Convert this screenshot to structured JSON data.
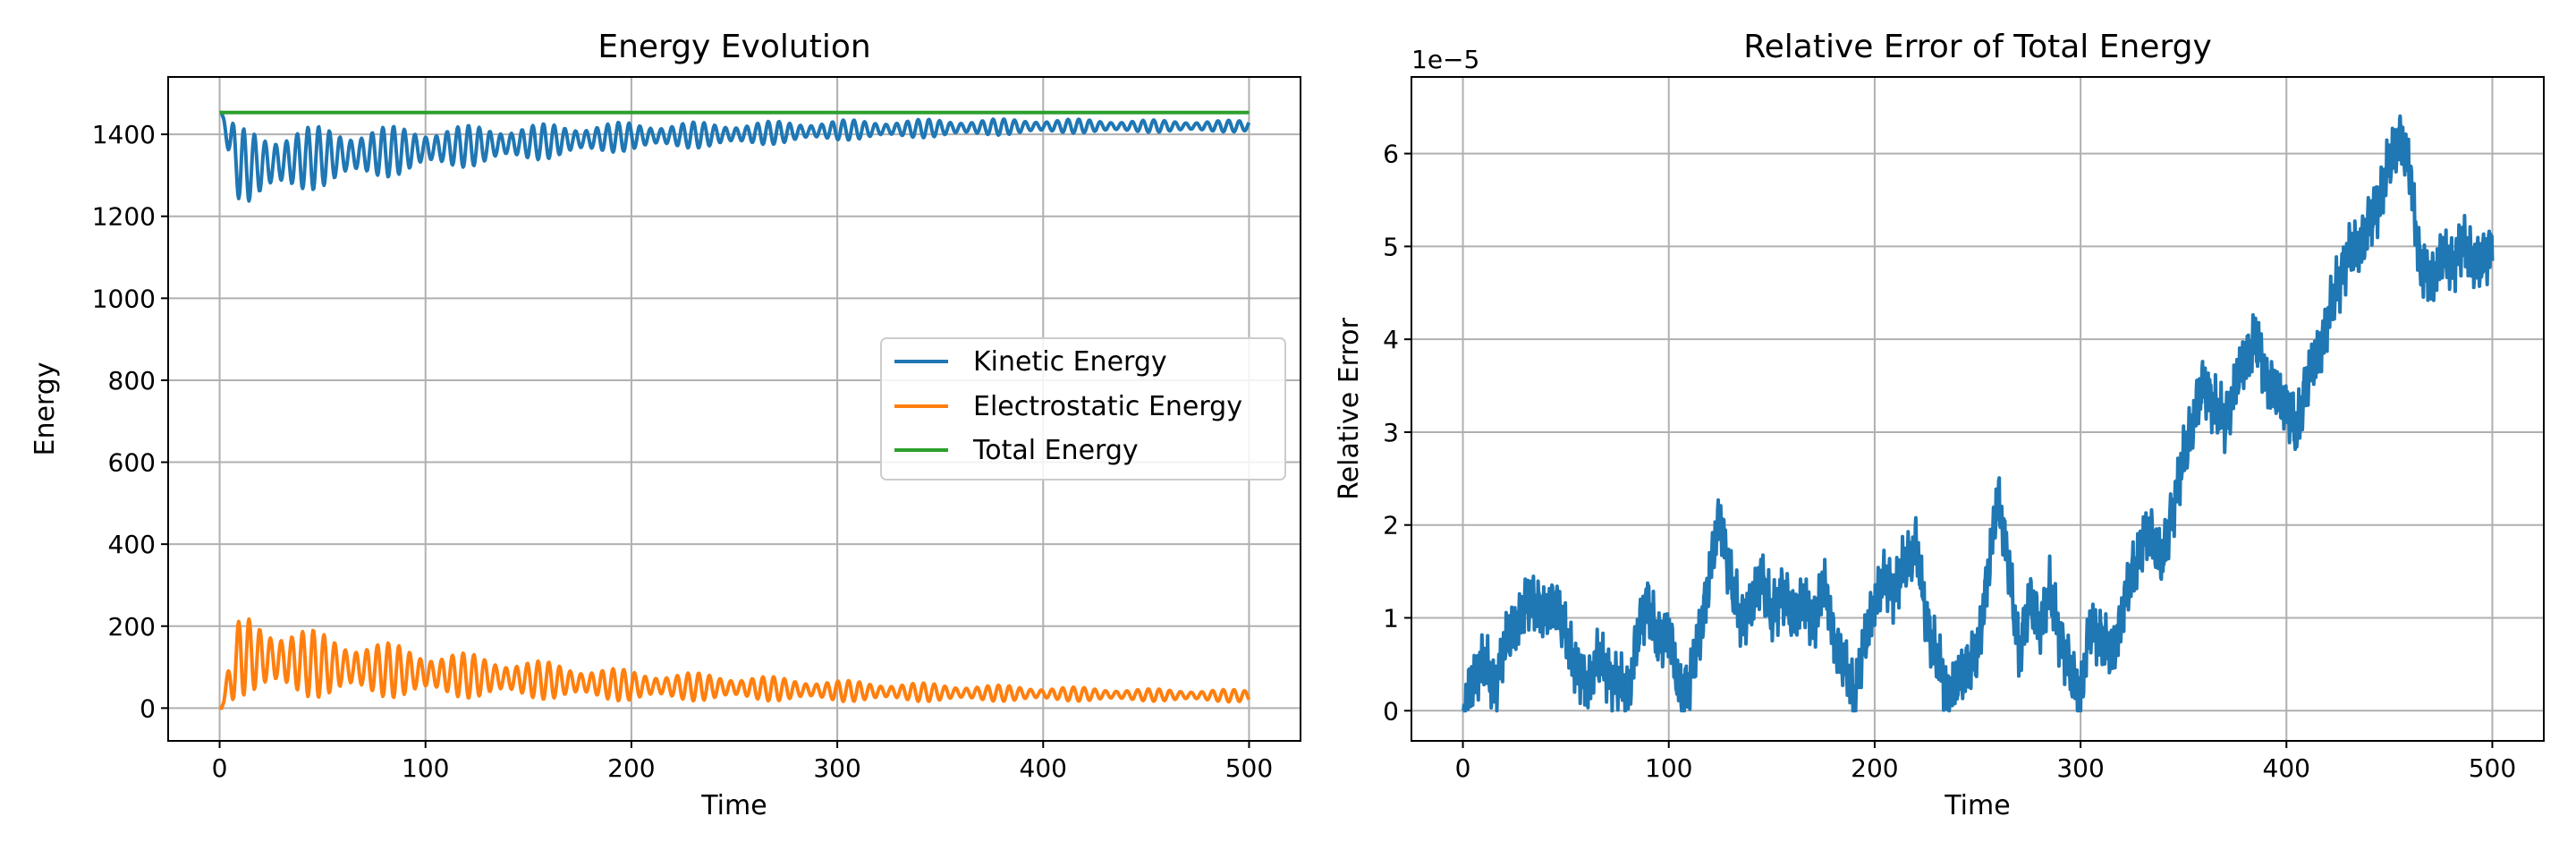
{
  "chart_data": [
    {
      "type": "line",
      "title": "Energy Evolution",
      "xlabel": "Time",
      "ylabel": "Energy",
      "xlim": [
        -25,
        525
      ],
      "ylim": [
        -80,
        1540
      ],
      "xticks": [
        0,
        100,
        200,
        300,
        400,
        500
      ],
      "yticks": [
        0,
        200,
        400,
        600,
        800,
        1000,
        1200,
        1400
      ],
      "grid": true,
      "legend_position": "center-right",
      "series": [
        {
          "name": "Kinetic Energy",
          "color": "#1f77b4",
          "x": [
            0,
            10,
            25,
            50,
            75,
            100,
            150,
            200,
            250,
            300,
            350,
            400,
            450,
            500
          ],
          "y_mean": [
            1453,
            1320,
            1330,
            1345,
            1355,
            1365,
            1380,
            1395,
            1400,
            1410,
            1415,
            1420,
            1420,
            1420
          ],
          "y_amplitude": [
            0,
            95,
            90,
            75,
            65,
            55,
            45,
            35,
            30,
            25,
            22,
            18,
            15,
            14
          ],
          "y_values": [
            1453,
            1250,
            1220,
            1410,
            1300,
            1420,
            1330,
            1430,
            1360,
            1435,
            1395,
            1440,
            1405,
            1410
          ]
        },
        {
          "name": "Electrostatic Energy",
          "color": "#ff7f0e",
          "x": [
            0,
            10,
            25,
            50,
            75,
            100,
            150,
            200,
            250,
            300,
            350,
            400,
            450,
            500
          ],
          "y_mean": [
            0,
            130,
            120,
            105,
            95,
            85,
            70,
            55,
            50,
            42,
            38,
            35,
            32,
            30
          ],
          "y_amplitude": [
            0,
            100,
            95,
            80,
            70,
            60,
            48,
            38,
            32,
            26,
            22,
            18,
            15,
            15
          ],
          "y_values": [
            0,
            205,
            235,
            180,
            170,
            140,
            140,
            100,
            80,
            70,
            55,
            50,
            50,
            45
          ]
        },
        {
          "name": "Total Energy",
          "color": "#2ca02c",
          "x": [
            0,
            500
          ],
          "y_values": [
            1453,
            1453
          ]
        }
      ]
    },
    {
      "type": "line",
      "title": "Relative Error of Total Energy",
      "xlabel": "Time",
      "ylabel": "Relative Error",
      "offset_label": "1e−5",
      "xlim": [
        -25,
        525
      ],
      "ylim": [
        -0.325,
        6.825
      ],
      "xticks": [
        0,
        100,
        200,
        300,
        400,
        500
      ],
      "yticks": [
        0,
        1,
        2,
        3,
        4,
        5,
        6
      ],
      "grid": true,
      "series": [
        {
          "name": "Relative Error",
          "color": "#1f77b4",
          "x": [
            0,
            5,
            10,
            15,
            20,
            25,
            30,
            35,
            40,
            45,
            50,
            55,
            60,
            65,
            70,
            75,
            80,
            85,
            90,
            95,
            100,
            105,
            110,
            115,
            120,
            125,
            130,
            135,
            140,
            145,
            150,
            155,
            160,
            165,
            170,
            175,
            180,
            185,
            190,
            195,
            200,
            205,
            210,
            215,
            220,
            225,
            230,
            235,
            240,
            245,
            250,
            255,
            260,
            265,
            270,
            275,
            280,
            285,
            290,
            295,
            300,
            305,
            310,
            315,
            320,
            325,
            330,
            335,
            340,
            345,
            350,
            355,
            360,
            365,
            370,
            375,
            380,
            385,
            390,
            395,
            400,
            405,
            410,
            415,
            420,
            425,
            430,
            435,
            440,
            445,
            450,
            455,
            460,
            465,
            470,
            475,
            480,
            485,
            490,
            495,
            500
          ],
          "y": [
            0.0,
            0.3,
            0.6,
            0.2,
            0.7,
            0.9,
            1.1,
            1.2,
            1.0,
            1.2,
            0.8,
            0.5,
            0.2,
            0.6,
            0.4,
            0.3,
            0.2,
            0.8,
            1.2,
            0.7,
            0.9,
            0.2,
            0.3,
            0.8,
            1.5,
            2.1,
            1.4,
            1.0,
            1.1,
            1.5,
            1.0,
            1.3,
            1.0,
            1.2,
            0.9,
            1.4,
            0.8,
            0.5,
            0.2,
            0.7,
            1.2,
            1.4,
            1.3,
            1.6,
            1.8,
            1.0,
            0.6,
            0.2,
            0.3,
            0.5,
            0.6,
            1.5,
            2.3,
            1.6,
            0.6,
            1.2,
            0.9,
            1.3,
            0.8,
            0.4,
            0.2,
            0.9,
            0.8,
            0.6,
            1.0,
            1.5,
            1.8,
            1.9,
            1.6,
            2.2,
            2.7,
            3.2,
            3.5,
            3.3,
            3.1,
            3.5,
            3.8,
            4.0,
            3.6,
            3.4,
            3.3,
            3.0,
            3.6,
            3.8,
            4.2,
            4.6,
            4.9,
            5.0,
            5.2,
            5.5,
            5.9,
            6.2,
            5.8,
            4.8,
            4.6,
            4.9,
            4.8,
            5.0,
            4.9,
            4.8,
            5.0
          ]
        }
      ]
    }
  ]
}
